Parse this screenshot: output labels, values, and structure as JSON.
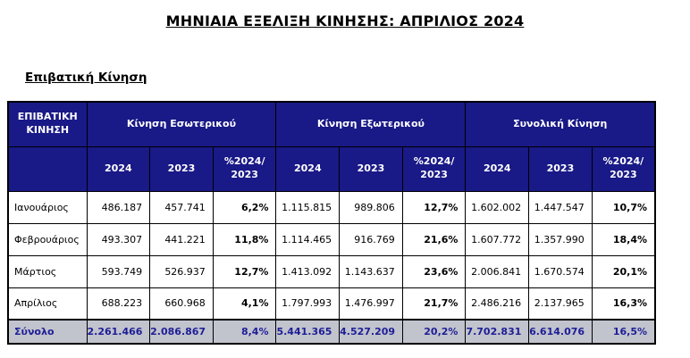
{
  "page": {
    "title": "ΜΗΝΙΑΙΑ ΕΞΕΛΙΞΗ ΚΙΝΗΣΗΣ: ΑΠΡΙΛΙΟΣ 2024",
    "section_heading": "Επιβατική Κίνηση"
  },
  "colors": {
    "header_bg": "#191987",
    "header_text": "#ffffff",
    "total_row_bg": "#c1c3cd",
    "total_row_text": "#1e1e96",
    "border": "#000000",
    "body_text": "#000000"
  },
  "table": {
    "corner_header": "ΕΠΙΒΑΤΙΚΗ\nΚΙΝΗΣΗ",
    "groups": [
      {
        "label": "Κίνηση Εσωτερικού"
      },
      {
        "label": "Κίνηση Εξωτερικού"
      },
      {
        "label": "Συνολική Κίνηση"
      }
    ],
    "sub_headers": [
      "2024",
      "2023",
      "%2024/\n2023"
    ],
    "rows": [
      {
        "label": "Ιανουάριος",
        "values": [
          "486.187",
          "457.741",
          "6,2%",
          "1.115.815",
          "989.806",
          "12,7%",
          "1.602.002",
          "1.447.547",
          "10,7%"
        ]
      },
      {
        "label": "Φεβρουάριος",
        "values": [
          "493.307",
          "441.221",
          "11,8%",
          "1.114.465",
          "916.769",
          "21,6%",
          "1.607.772",
          "1.357.990",
          "18,4%"
        ]
      },
      {
        "label": "Μάρτιος",
        "values": [
          "593.749",
          "526.937",
          "12,7%",
          "1.413.092",
          "1.143.637",
          "23,6%",
          "2.006.841",
          "1.670.574",
          "20,1%"
        ]
      },
      {
        "label": "Απρίλιος",
        "values": [
          "688.223",
          "660.968",
          "4,1%",
          "1.797.993",
          "1.476.997",
          "21,7%",
          "2.486.216",
          "2.137.965",
          "16,3%"
        ]
      }
    ],
    "total_row": {
      "label": "Σύνολο",
      "values": [
        "2.261.466",
        "2.086.867",
        "8,4%",
        "5.441.365",
        "4.527.209",
        "20,2%",
        "7.702.831",
        "6.614.076",
        "16,5%"
      ]
    }
  }
}
